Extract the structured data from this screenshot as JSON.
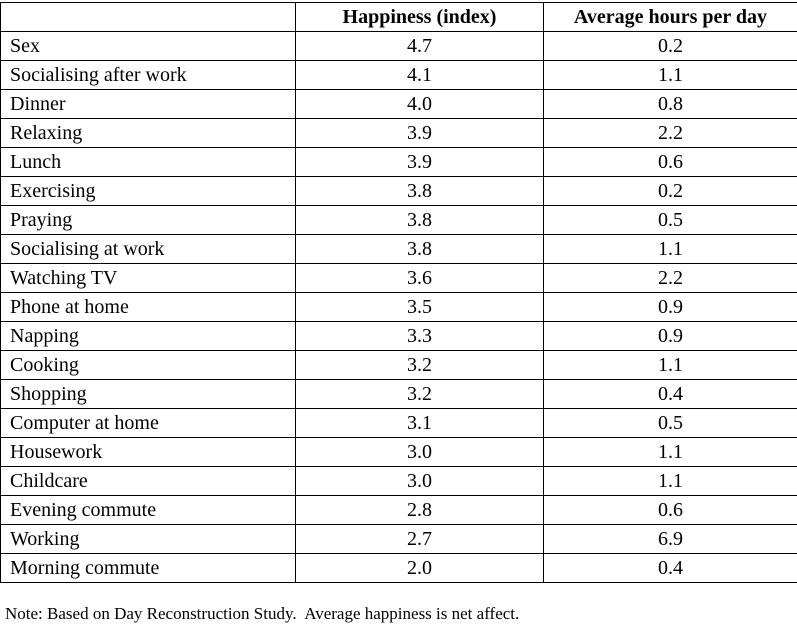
{
  "table": {
    "columns": [
      "",
      "Happiness (index)",
      "Average hours per day"
    ],
    "rows": [
      {
        "activity": "Sex",
        "happiness": "4.7",
        "hours": "0.2"
      },
      {
        "activity": "Socialising after work",
        "happiness": "4.1",
        "hours": "1.1"
      },
      {
        "activity": "Dinner",
        "happiness": "4.0",
        "hours": "0.8"
      },
      {
        "activity": "Relaxing",
        "happiness": "3.9",
        "hours": "2.2"
      },
      {
        "activity": "Lunch",
        "happiness": "3.9",
        "hours": "0.6"
      },
      {
        "activity": "Exercising",
        "happiness": "3.8",
        "hours": "0.2"
      },
      {
        "activity": "Praying",
        "happiness": "3.8",
        "hours": "0.5"
      },
      {
        "activity": "Socialising at work",
        "happiness": "3.8",
        "hours": "1.1"
      },
      {
        "activity": "Watching TV",
        "happiness": "3.6",
        "hours": "2.2"
      },
      {
        "activity": "Phone at home",
        "happiness": "3.5",
        "hours": "0.9"
      },
      {
        "activity": "Napping",
        "happiness": "3.3",
        "hours": "0.9"
      },
      {
        "activity": "Cooking",
        "happiness": "3.2",
        "hours": "1.1"
      },
      {
        "activity": "Shopping",
        "happiness": "3.2",
        "hours": "0.4"
      },
      {
        "activity": "Computer at home",
        "happiness": "3.1",
        "hours": "0.5"
      },
      {
        "activity": "Housework",
        "happiness": "3.0",
        "hours": "1.1"
      },
      {
        "activity": "Childcare",
        "happiness": "3.0",
        "hours": "1.1"
      },
      {
        "activity": "Evening commute",
        "happiness": "2.8",
        "hours": "0.6"
      },
      {
        "activity": "Working",
        "happiness": "2.7",
        "hours": "6.9"
      },
      {
        "activity": "Morning commute",
        "happiness": "2.0",
        "hours": "0.4"
      }
    ]
  },
  "note": "Note: Based on Day Reconstruction Study.  Average happiness is net affect."
}
